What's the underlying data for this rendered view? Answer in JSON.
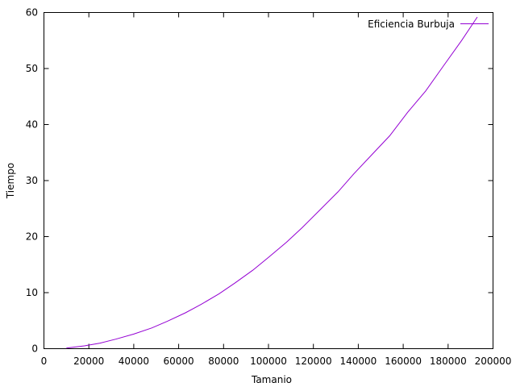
{
  "chart_data": {
    "type": "line",
    "xlabel": "Tamanio",
    "ylabel": "Tiempo",
    "xlim": [
      0,
      200000
    ],
    "ylim": [
      0,
      60
    ],
    "xticks": [
      0,
      20000,
      40000,
      60000,
      80000,
      100000,
      120000,
      140000,
      160000,
      180000,
      200000
    ],
    "xtick_labels": [
      "0",
      "20000",
      "40000",
      "60000",
      "80000",
      "100000",
      "120000",
      "140000",
      "160000",
      "180000",
      "200000"
    ],
    "yticks": [
      0,
      10,
      20,
      30,
      40,
      50,
      60
    ],
    "ytick_labels": [
      "0",
      "10",
      "20",
      "30",
      "40",
      "50",
      "60"
    ],
    "grid": false,
    "legend_position": "top-right",
    "series": [
      {
        "name": "Eficiencia Burbuja",
        "color": "#9400d3",
        "x": [
          10000,
          18000,
          25000,
          32000,
          40000,
          48000,
          55000,
          63000,
          70000,
          78000,
          85000,
          93000,
          100000,
          108000,
          115000,
          123000,
          131000,
          138000,
          146000,
          154000,
          162000,
          170000,
          178000,
          186000,
          193000
        ],
        "y": [
          0.1,
          0.5,
          1.0,
          1.7,
          2.6,
          3.7,
          4.9,
          6.4,
          7.9,
          9.8,
          11.7,
          14.0,
          16.3,
          19.0,
          21.6,
          24.8,
          28.0,
          31.2,
          34.6,
          38.0,
          42.2,
          46.0,
          50.5,
          55.0,
          59.2
        ]
      }
    ]
  }
}
